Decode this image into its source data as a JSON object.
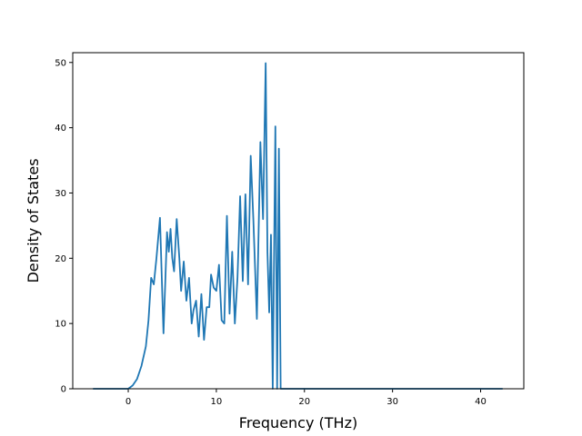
{
  "chart_data": {
    "type": "line",
    "title": "",
    "xlabel": "Frequency (THz)",
    "ylabel": "Density of States",
    "xlim": [
      -6.3,
      44.9
    ],
    "ylim": [
      0,
      51.5
    ],
    "xticks": [
      0,
      10,
      20,
      30,
      40
    ],
    "yticks": [
      0,
      10,
      20,
      30,
      40,
      50
    ],
    "grid": false,
    "legend": "none",
    "series": [
      {
        "color": "#1f77b4",
        "x": [
          -4.0,
          -1.0,
          0.0,
          0.5,
          1.0,
          1.5,
          2.0,
          2.3,
          2.6,
          2.9,
          3.2,
          3.6,
          4.0,
          4.4,
          4.6,
          4.8,
          5.0,
          5.2,
          5.5,
          5.8,
          6.0,
          6.3,
          6.6,
          6.9,
          7.2,
          7.4,
          7.7,
          8.0,
          8.3,
          8.6,
          8.9,
          9.2,
          9.4,
          9.7,
          10.0,
          10.3,
          10.6,
          10.9,
          11.2,
          11.5,
          11.8,
          12.1,
          12.4,
          12.7,
          13.0,
          13.3,
          13.6,
          13.9,
          14.2,
          14.6,
          15.0,
          15.3,
          15.6,
          15.8,
          16.0,
          16.2,
          16.4,
          16.7,
          16.9,
          17.1,
          17.3,
          17.5,
          17.8,
          18.3,
          42.5
        ],
        "y": [
          0,
          0,
          0,
          0.5,
          1.5,
          3.5,
          6.5,
          10.5,
          17,
          16,
          20,
          26.2,
          8.5,
          24,
          21,
          24.5,
          20,
          18,
          26,
          20,
          15,
          19.5,
          13.5,
          17,
          10,
          12,
          13.5,
          8,
          14.5,
          7.5,
          12.5,
          12.5,
          17.5,
          15.5,
          15,
          19,
          10.5,
          10,
          26.5,
          11.5,
          21,
          10,
          17,
          29.5,
          16.5,
          29.8,
          16,
          35.7,
          26,
          10.7,
          37.8,
          26,
          49.9,
          21,
          11.7,
          23.6,
          0,
          40.2,
          0,
          36.8,
          0,
          0,
          0,
          0,
          0
        ]
      }
    ]
  }
}
